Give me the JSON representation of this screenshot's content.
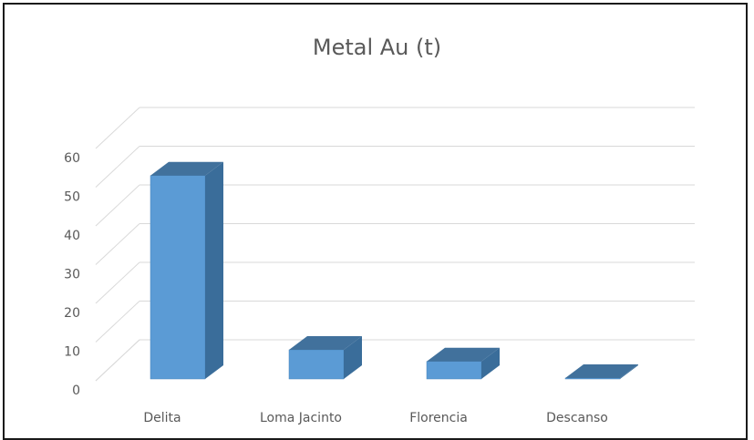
{
  "chart_data": {
    "type": "bar",
    "title": "Metal Au (t)",
    "categories": [
      "Delita",
      "Loma Jacinto",
      "Florencia",
      "Descanso"
    ],
    "values": [
      53,
      8,
      5,
      0.2
    ],
    "ylim": [
      0,
      60
    ],
    "yticks": [
      "0",
      "10",
      "20",
      "30",
      "40",
      "50",
      "60"
    ],
    "grid": true,
    "legend": "none",
    "colors": {
      "front": "#5b9bd5",
      "side": "#3a6d9a",
      "top": "#41719c",
      "grid": "#d9d9d9"
    }
  }
}
